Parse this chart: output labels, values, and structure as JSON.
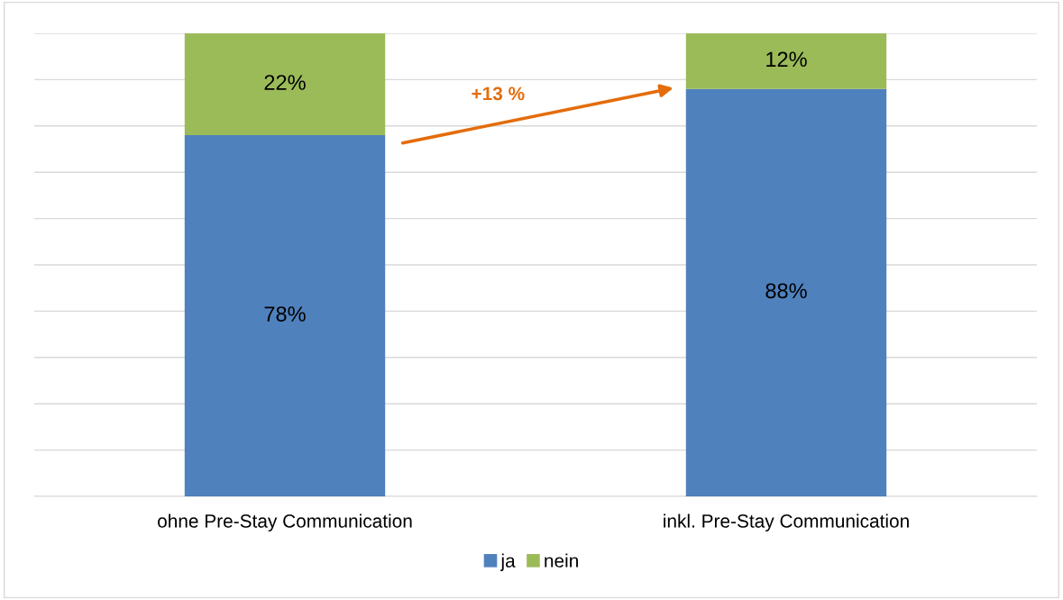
{
  "chart_data": {
    "type": "bar",
    "stacked": true,
    "categories": [
      "ohne Pre-Stay Communication",
      "inkl. Pre-Stay Communication"
    ],
    "series": [
      {
        "name": "ja",
        "color": "#4f81bd",
        "values": [
          78,
          88
        ],
        "value_labels": [
          "78%",
          "88%"
        ]
      },
      {
        "name": "nein",
        "color": "#9bbb59",
        "values": [
          22,
          12
        ],
        "value_labels": [
          "22%",
          "12%"
        ]
      }
    ],
    "ylim": [
      0,
      100
    ],
    "yticks": [
      {
        "value": 0,
        "label": null
      },
      {
        "value": 10,
        "label": null
      },
      {
        "value": 20,
        "label": null
      },
      {
        "value": 30,
        "label": null
      },
      {
        "value": 40,
        "label": null
      },
      {
        "value": 50,
        "label": null
      },
      {
        "value": 60,
        "label": null
      },
      {
        "value": 70,
        "label": null
      },
      {
        "value": 80,
        "label": null
      },
      {
        "value": 90,
        "label": null
      },
      {
        "value": 100,
        "label": null
      }
    ],
    "tick_labels": "x",
    "grid": "y",
    "legend": "bottom",
    "annotations": [
      "+13 %"
    ]
  }
}
